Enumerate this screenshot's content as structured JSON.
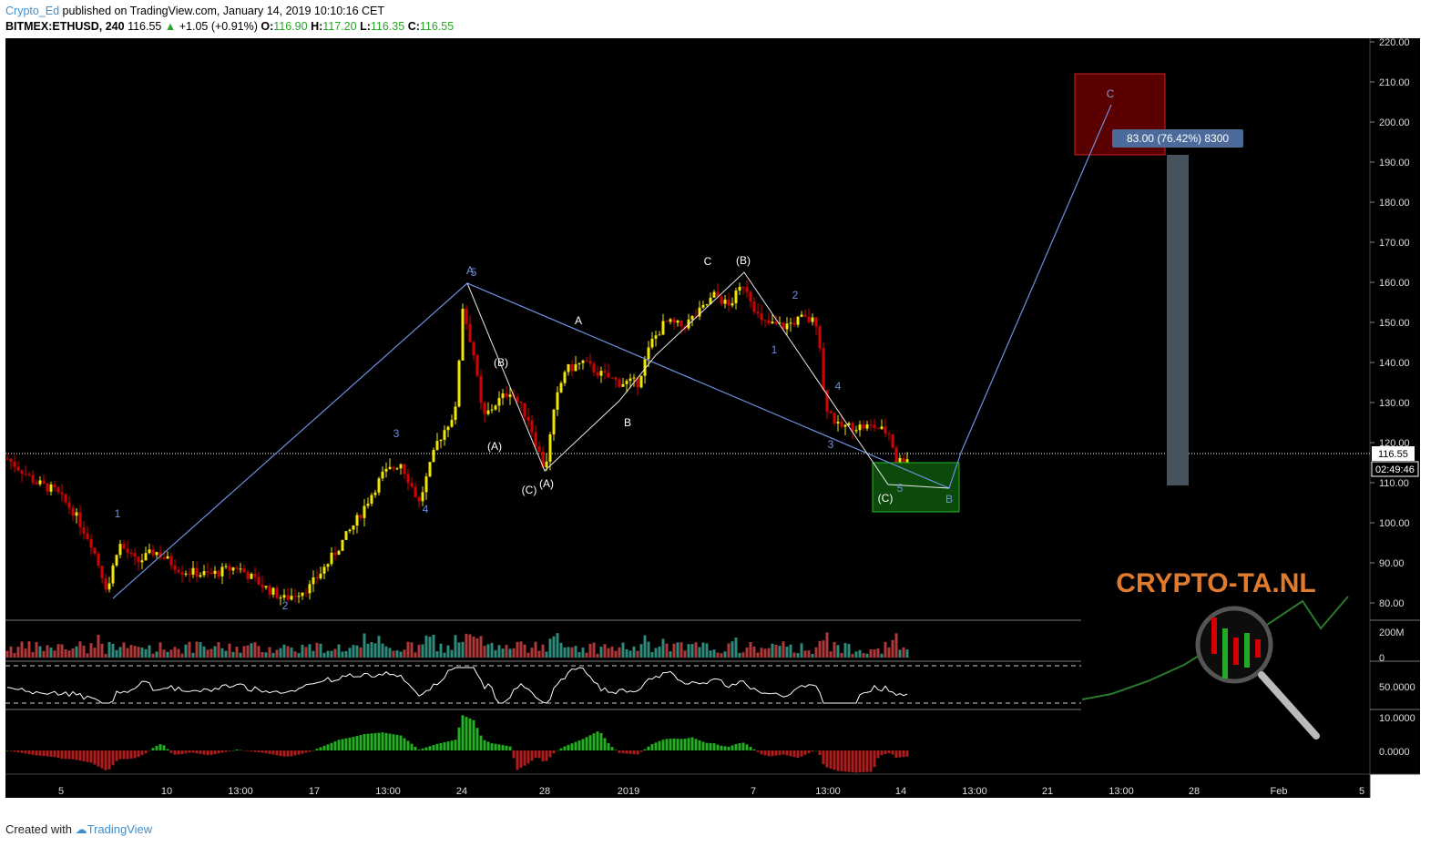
{
  "header": {
    "author": "Crypto_Ed",
    "published": " published on TradingView.com, January 14, 2019 10:10:16 CET",
    "symbol": "BITMEX:ETHUSD, 240",
    "last": "116.55",
    "change": "+1.05 (+0.91%)",
    "o_label": "O:",
    "o": "116.90",
    "h_label": "H:",
    "h": "117.20",
    "l_label": "L:",
    "l": "116.35",
    "c_label": "C:",
    "c": "116.55"
  },
  "footer": {
    "created_with": "Created with",
    "brand": "TradingView"
  },
  "price_axis": {
    "ticks": [
      "220.00",
      "210.00",
      "200.00",
      "190.00",
      "180.00",
      "170.00",
      "160.00",
      "150.00",
      "140.00",
      "130.00",
      "120.00",
      "110.00",
      "100.00",
      "90.00",
      "80.00"
    ],
    "last_price": "116.55",
    "countdown": "02:49:46"
  },
  "volume_axis": {
    "ticks": [
      "200M",
      "0"
    ]
  },
  "rsi_axis": {
    "ticks": [
      "50.0000"
    ]
  },
  "ao_axis": {
    "ticks": [
      "10.0000",
      "0.0000"
    ]
  },
  "time_axis": [
    "5",
    "10",
    "13:00",
    "17",
    "13:00",
    "24",
    "28",
    "2019",
    "7",
    "13:00",
    "14",
    "13:00",
    "21",
    "13:00",
    "28",
    "Feb",
    "5"
  ],
  "measure_label": "83.00 (76.42%) 8300",
  "wave_labels": {
    "w1": "1",
    "w2": "2",
    "w3": "3",
    "w4": "4",
    "w5": "5",
    "A_top": "A",
    "B_left": "(B)",
    "A_left": "(A)",
    "C_bot": "(C)",
    "A_bot": "(A)",
    "A_mid": "A",
    "B_mid": "B",
    "C_top": "C",
    "B_top": "(B)",
    "r1": "1",
    "r2": "2",
    "r3": "3",
    "r4": "4",
    "r5": "5",
    "C_end": "(C)",
    "proj_B": "B",
    "proj_C": "C"
  },
  "watermark": "CRYPTO-TA.NL",
  "colors": {
    "up": "#f2e600",
    "down": "#d40000",
    "wave_blue": "#6f8fe0",
    "measure": "#4d6b9a"
  },
  "chart_data": {
    "type": "candlestick",
    "symbol": "BITMEX:ETHUSD",
    "interval": "240",
    "last": 116.55,
    "ylim": [
      76,
      221
    ],
    "ohlc_summary": {
      "open": 116.9,
      "high": 117.2,
      "low": 116.35,
      "close": 116.55,
      "change": 1.05,
      "change_pct": 0.91
    },
    "wave_path_prices": [
      {
        "x": "7",
        "y": 80
      },
      {
        "x": "24",
        "y": 159
      },
      {
        "x": "13:00 (Jan 13)",
        "y": 107.5
      },
      {
        "x": "",
        "y": 116.5
      },
      {
        "x": "13:00 (Jan 23)",
        "y": 204
      }
    ],
    "swing_points": [
      {
        "label": "(C)/(A)",
        "y": 112
      },
      {
        "label": "(B)",
        "y": 162
      },
      {
        "label": "(C)",
        "y": 113
      }
    ],
    "target_box": {
      "from": 192,
      "to": 212
    },
    "support_box": {
      "from": 103,
      "to": 115
    },
    "measure": {
      "from": 109,
      "to": 192,
      "label": "83.00 (76.42%) 8300"
    }
  }
}
